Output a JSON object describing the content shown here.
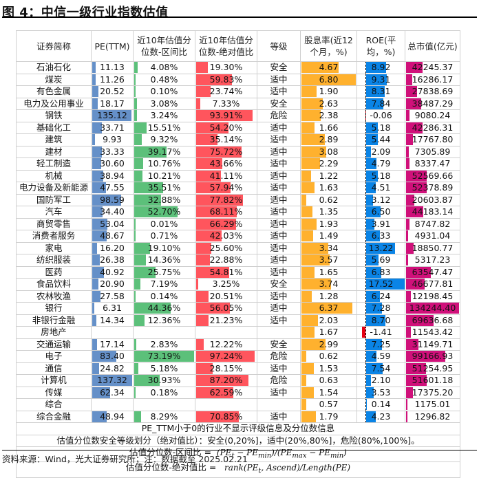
{
  "title": "图 4：中信一级行业指数估值",
  "colors": {
    "pe_bar": "#6590c8",
    "pct_range_bar": "#5cc07a",
    "pct_abs_bar": "#ff555d",
    "dividend_bar": "#ffb12e",
    "roe_bar": "#0a84e6",
    "roe_neg_bar": "#e60012",
    "mktcap_bar": "#d0107a"
  },
  "table": {
    "headers": [
      "证券简称",
      "PE(TTM)",
      "近10年估值分位数-区间比",
      "近10年估值分位数-绝对值比",
      "等级",
      "股息率(近12个月，%)",
      "ROE(平均，%)",
      "总市值(亿元)"
    ],
    "header_lines": [
      [
        "证券简称"
      ],
      [
        "PE(TTM)"
      ],
      [
        "近10年估值分",
        "位数-区间比"
      ],
      [
        "近10年估值分",
        "位数-绝对值比"
      ],
      [
        "等级"
      ],
      [
        "股息率(近12",
        "个月，%)"
      ],
      [
        "ROE(平",
        "均，%)"
      ],
      [
        "总市值(亿元)"
      ]
    ],
    "rows": [
      {
        "name": "石油石化",
        "pe": "11.13",
        "pct_range": "4.08%",
        "pct_abs": "19.30%",
        "grade": "安全",
        "dividend": "4.67",
        "roe": "8.92",
        "mktcap": "42245.37"
      },
      {
        "name": "煤炭",
        "pe": "11.26",
        "pct_range": "0.48%",
        "pct_abs": "59.83%",
        "grade": "适中",
        "dividend": "6.80",
        "roe": "9.31",
        "mktcap": "16286.17"
      },
      {
        "name": "有色金属",
        "pe": "20.52",
        "pct_range": "0.10%",
        "pct_abs": "23.74%",
        "grade": "适中",
        "dividend": "1.90",
        "roe": "8.31",
        "mktcap": "27838.69"
      },
      {
        "name": "电力及公用事业",
        "pe": "18.17",
        "pct_range": "3.08%",
        "pct_abs": "7.33%",
        "grade": "安全",
        "dividend": "2.63",
        "roe": "7.84",
        "mktcap": "38487.29"
      },
      {
        "name": "钢铁",
        "pe": "135.12",
        "pct_range": "3.24%",
        "pct_abs": "93.91%",
        "grade": "危险",
        "dividend": "2.38",
        "roe": "-0.06",
        "mktcap": "9080.24"
      },
      {
        "name": "基础化工",
        "pe": "33.71",
        "pct_range": "15.51%",
        "pct_abs": "54.20%",
        "grade": "适中",
        "dividend": "1.66",
        "roe": "5.18",
        "mktcap": "42286.31"
      },
      {
        "name": "建筑",
        "pe": "9.93",
        "pct_range": "9.32%",
        "pct_abs": "35.14%",
        "grade": "适中",
        "dividend": "2.89",
        "roe": "5.44",
        "mktcap": "17767.80"
      },
      {
        "name": "建材",
        "pe": "33.33",
        "pct_range": "39.17%",
        "pct_abs": "75.72%",
        "grade": "适中",
        "dividend": "3.08",
        "roe": "2.09",
        "mktcap": "7305.89"
      },
      {
        "name": "轻工制造",
        "pe": "30.60",
        "pct_range": "10.76%",
        "pct_abs": "43.66%",
        "grade": "适中",
        "dividend": "2.29",
        "roe": "4.79",
        "mktcap": "8337.47"
      },
      {
        "name": "机械",
        "pe": "38.94",
        "pct_range": "10.21%",
        "pct_abs": "41.11%",
        "grade": "适中",
        "dividend": "1.22",
        "roe": "5.18",
        "mktcap": "52569.66"
      },
      {
        "name": "电力设备及新能源",
        "pe": "47.55",
        "pct_range": "35.51%",
        "pct_abs": "57.94%",
        "grade": "适中",
        "dividend": "1.63",
        "roe": "4.51",
        "mktcap": "52378.89"
      },
      {
        "name": "国防军工",
        "pe": "98.59",
        "pct_range": "32.88%",
        "pct_abs": "77.82%",
        "grade": "适中",
        "dividend": "0.62",
        "roe": "3.12",
        "mktcap": "20603.87"
      },
      {
        "name": "汽车",
        "pe": "34.40",
        "pct_range": "52.70%",
        "pct_abs": "68.11%",
        "grade": "适中",
        "dividend": "1.35",
        "roe": "6.50",
        "mktcap": "44183.14"
      },
      {
        "name": "商贸零售",
        "pe": "53.04",
        "pct_range": "0.01%",
        "pct_abs": "66.29%",
        "grade": "适中",
        "dividend": "1.93",
        "roe": "3.91",
        "mktcap": "8747.82"
      },
      {
        "name": "消费者服务",
        "pe": "48.67",
        "pct_range": "0.71%",
        "pct_abs": "42.03%",
        "grade": "适中",
        "dividend": "1.49",
        "roe": "6.33",
        "mktcap": "4931.04"
      },
      {
        "name": "家电",
        "pe": "16.20",
        "pct_range": "19.10%",
        "pct_abs": "25.60%",
        "grade": "适中",
        "dividend": "3.34",
        "roe": "13.22",
        "mktcap": "18850.77"
      },
      {
        "name": "纺织服装",
        "pe": "26.38",
        "pct_range": "14.36%",
        "pct_abs": "22.88%",
        "grade": "适中",
        "dividend": "3.57",
        "roe": "5.69",
        "mktcap": "5317.23"
      },
      {
        "name": "医药",
        "pe": "40.92",
        "pct_range": "25.75%",
        "pct_abs": "54.81%",
        "grade": "适中",
        "dividend": "1.65",
        "roe": "6.83",
        "mktcap": "63547.47"
      },
      {
        "name": "食品饮料",
        "pe": "20.90",
        "pct_range": "7.19%",
        "pct_abs": "3.25%",
        "grade": "安全",
        "dividend": "3.74",
        "roe": "17.52",
        "mktcap": "46677.81"
      },
      {
        "name": "农林牧渔",
        "pe": "27.58",
        "pct_range": "0.14%",
        "pct_abs": "20.51%",
        "grade": "适中",
        "dividend": "1.28",
        "roe": "6.24",
        "mktcap": "12198.45"
      },
      {
        "name": "银行",
        "pe": "6.31",
        "pct_range": "44.36%",
        "pct_abs": "56.05%",
        "grade": "适中",
        "dividend": "6.37",
        "roe": "7.28",
        "mktcap": "134244.40"
      },
      {
        "name": "非银行金融",
        "pe": "14.34",
        "pct_range": "12.36%",
        "pct_abs": "21.23%",
        "grade": "适中",
        "dividend": "2.03",
        "roe": "8.70",
        "mktcap": "69636.68"
      },
      {
        "name": "房地产",
        "pe": "",
        "pct_range": "",
        "pct_abs": "",
        "grade": "",
        "dividend": "1.67",
        "roe": "-1.41",
        "mktcap": "11543.42"
      },
      {
        "name": "交通运输",
        "pe": "17.14",
        "pct_range": "2.83%",
        "pct_abs": "12.22%",
        "grade": "安全",
        "dividend": "2.99",
        "roe": "7.25",
        "mktcap": "31149.71"
      },
      {
        "name": "电子",
        "pe": "83.40",
        "pct_range": "73.19%",
        "pct_abs": "97.24%",
        "grade": "危险",
        "dividend": "0.62",
        "roe": "4.59",
        "mktcap": "99166.93"
      },
      {
        "name": "通信",
        "pe": "24.82",
        "pct_range": "5.18%",
        "pct_abs": "28.15%",
        "grade": "适中",
        "dividend": "1.53",
        "roe": "7.54",
        "mktcap": "51254.95"
      },
      {
        "name": "计算机",
        "pe": "137.32",
        "pct_range": "30.93%",
        "pct_abs": "87.20%",
        "grade": "危险",
        "dividend": "0.63",
        "roe": "2.10",
        "mktcap": "51601.18"
      },
      {
        "name": "传媒",
        "pe": "62.34",
        "pct_range": "0.18%",
        "pct_abs": "62.59%",
        "grade": "适中",
        "dividend": "1.54",
        "roe": "3.53",
        "mktcap": "17375.20"
      },
      {
        "name": "综合",
        "pe": "",
        "pct_range": "",
        "pct_abs": "",
        "grade": "",
        "dividend": "0.57",
        "roe": "0.14",
        "mktcap": "1175.01"
      },
      {
        "name": "综合金融",
        "pe": "48.94",
        "pct_range": "8.29%",
        "pct_abs": "70.85%",
        "grade": "适中",
        "dividend": "1.79",
        "roe": "4.23",
        "mktcap": "1296.82"
      }
    ],
    "bar_scales": {
      "pe_max": 137.32,
      "pct_range_max": 73.19,
      "pct_abs_max": 97.24,
      "dividend_max": 6.8,
      "roe_max": 17.52,
      "roe_neg_max": 1.41,
      "mktcap_max": 134244.4
    }
  },
  "footnotes": {
    "note1": "PE_TTM小于0的行业不显示评级信息及分位数信息",
    "note2": "估值分位数安全等级划分（绝对值比）：安全(0,20%]，适中(20%,80%]，危险(80%,100%]。",
    "formula1_label": "估值分位数-区间比 =",
    "formula1": "(PE_t − PE_min)/(PE_max − PE_min)",
    "formula2_label": "估值分位数-绝对值比 =",
    "formula2": "rank(PE_t, Ascend)/Length(PE)"
  },
  "source": "资料来源：Wind，光大证券研究所；注：数据截至 2025.02.21"
}
